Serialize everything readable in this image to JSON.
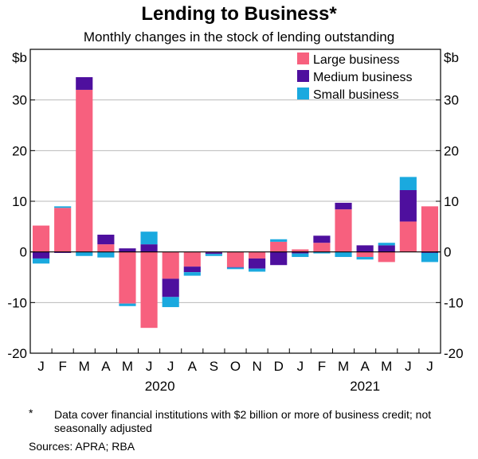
{
  "chart_data": {
    "type": "bar",
    "stacked": true,
    "title": "Lending to Business*",
    "subtitle": "Monthly changes in the stock of lending outstanding",
    "ylabel_left": "$b",
    "ylabel_right": "$b",
    "ylim": [
      -20,
      40
    ],
    "yticks": [
      -20,
      -10,
      0,
      10,
      20,
      30
    ],
    "categories": [
      "J",
      "F",
      "M",
      "A",
      "M",
      "J",
      "J",
      "A",
      "S",
      "O",
      "N",
      "D",
      "J",
      "F",
      "M",
      "A",
      "M",
      "J",
      "J"
    ],
    "year_labels": [
      {
        "label": "2020",
        "category_index": 5.5
      },
      {
        "label": "2021",
        "category_index": 15.0
      }
    ],
    "series": [
      {
        "name": "Large business",
        "color": "#f7607e",
        "values": [
          5.2,
          8.7,
          32.0,
          1.5,
          -10.2,
          -15.0,
          -5.3,
          -2.9,
          -0.1,
          -3.0,
          -1.3,
          2.0,
          0.5,
          1.8,
          8.4,
          -1.0,
          -2.0,
          6.0,
          9.0
        ]
      },
      {
        "name": "Medium business",
        "color": "#4e0f9e",
        "values": [
          -1.3,
          -0.2,
          2.5,
          1.9,
          0.7,
          1.5,
          -3.6,
          -1.1,
          -0.3,
          -0.1,
          -2.0,
          -2.6,
          -0.3,
          1.4,
          1.3,
          1.3,
          1.3,
          6.2,
          -0.2
        ]
      },
      {
        "name": "Small business",
        "color": "#1aa9df",
        "values": [
          -1.0,
          0.3,
          -0.8,
          -1.1,
          -0.5,
          2.5,
          -2.0,
          -0.7,
          -0.4,
          -0.3,
          -0.6,
          0.5,
          -0.7,
          -0.3,
          -1.0,
          -0.5,
          0.5,
          2.6,
          -1.8
        ]
      }
    ],
    "legend_position": "top-right",
    "grid": true
  },
  "footnote_marker": "*",
  "footnote": "Data cover financial institutions with $2 billion or more of business credit; not seasonally adjusted",
  "sources": "Sources: APRA; RBA"
}
